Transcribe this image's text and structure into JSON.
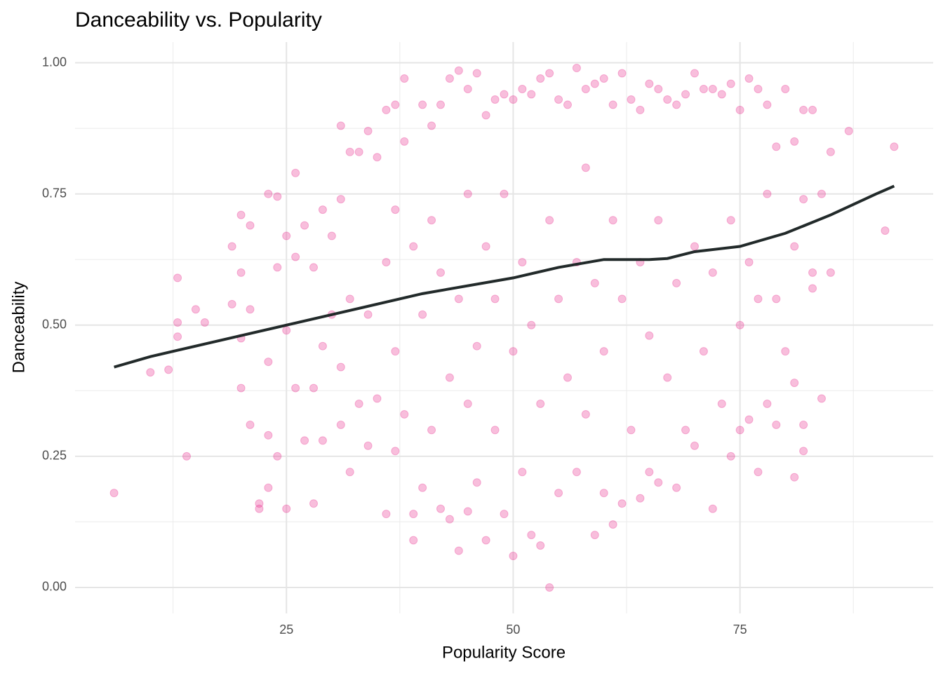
{
  "chart_data": {
    "type": "scatter",
    "title": "Danceability vs. Popularity",
    "x_label": "Popularity Score",
    "y_label": "Danceability",
    "xlim": [
      1.7,
      96.3
    ],
    "ylim": [
      -0.0495,
      1.0395
    ],
    "xticks": [
      25,
      50,
      75
    ],
    "yticks": [
      {
        "value": 0,
        "label": "0.00"
      },
      {
        "value": 0.25,
        "label": "0.25"
      },
      {
        "value": 0.5,
        "label": "0.50"
      },
      {
        "value": 0.75,
        "label": "0.75"
      },
      {
        "value": 1,
        "label": "1.00"
      }
    ],
    "x_minor_grid": [
      12.5,
      37.5,
      62.5,
      87.5
    ],
    "y_minor_grid": [
      0.125,
      0.375,
      0.625,
      0.875
    ],
    "grid": true,
    "points": {
      "color": "#e7298a",
      "opacity": 0.3,
      "x": [
        6,
        10,
        12,
        13,
        13,
        13,
        14,
        15,
        16,
        19,
        19,
        20,
        20,
        20,
        20,
        21,
        21,
        21,
        22,
        22,
        23,
        23,
        23,
        23,
        24,
        24,
        24,
        25,
        25,
        25,
        26,
        26,
        26,
        27,
        27,
        28,
        28,
        28,
        29,
        29,
        29,
        30,
        30,
        31,
        31,
        31,
        31,
        32,
        32,
        32,
        33,
        33,
        34,
        34,
        34,
        35,
        35,
        36,
        36,
        36,
        37,
        37,
        37,
        37,
        38,
        38,
        38,
        39,
        39,
        39,
        40,
        40,
        40,
        41,
        41,
        41,
        42,
        42,
        42,
        43,
        43,
        43,
        44,
        44,
        44,
        45,
        45,
        45,
        45,
        46,
        46,
        46,
        47,
        47,
        47,
        48,
        48,
        48,
        49,
        49,
        49,
        50,
        50,
        50,
        51,
        51,
        51,
        52,
        52,
        52,
        53,
        53,
        53,
        54,
        54,
        54,
        55,
        55,
        55,
        56,
        56,
        57,
        57,
        57,
        58,
        58,
        58,
        59,
        59,
        59,
        60,
        60,
        60,
        61,
        61,
        61,
        62,
        62,
        62,
        63,
        63,
        64,
        64,
        64,
        65,
        65,
        65,
        66,
        66,
        66,
        67,
        67,
        68,
        68,
        68,
        69,
        69,
        70,
        70,
        70,
        71,
        71,
        72,
        72,
        72,
        73,
        73,
        74,
        74,
        74,
        75,
        75,
        75,
        76,
        76,
        76,
        77,
        77,
        77,
        78,
        78,
        78,
        79,
        79,
        79,
        80,
        80,
        81,
        81,
        81,
        81,
        82,
        82,
        82,
        82,
        83,
        83,
        83,
        84,
        84,
        85,
        85,
        87,
        91,
        92
      ],
      "y": [
        0.18,
        0.41,
        0.415,
        0.59,
        0.505,
        0.478,
        0.25,
        0.53,
        0.505,
        0.65,
        0.54,
        0.71,
        0.6,
        0.38,
        0.475,
        0.69,
        0.53,
        0.31,
        0.16,
        0.15,
        0.75,
        0.43,
        0.29,
        0.19,
        0.745,
        0.61,
        0.25,
        0.67,
        0.49,
        0.15,
        0.79,
        0.63,
        0.38,
        0.69,
        0.28,
        0.61,
        0.16,
        0.38,
        0.72,
        0.46,
        0.28,
        0.67,
        0.52,
        0.88,
        0.31,
        0.74,
        0.42,
        0.83,
        0.55,
        0.22,
        0.83,
        0.35,
        0.87,
        0.52,
        0.27,
        0.82,
        0.36,
        0.91,
        0.62,
        0.14,
        0.92,
        0.72,
        0.45,
        0.26,
        0.97,
        0.85,
        0.33,
        0.14,
        0.09,
        0.65,
        0.92,
        0.52,
        0.19,
        0.88,
        0.7,
        0.3,
        0.92,
        0.6,
        0.15,
        0.97,
        0.4,
        0.13,
        0.985,
        0.07,
        0.55,
        0.95,
        0.75,
        0.35,
        0.145,
        0.98,
        0.46,
        0.2,
        0.9,
        0.65,
        0.09,
        0.93,
        0.3,
        0.55,
        0.94,
        0.14,
        0.75,
        0.93,
        0.06,
        0.45,
        0.95,
        0.62,
        0.22,
        0.94,
        0.1,
        0.5,
        0.97,
        0.08,
        0.35,
        0.98,
        0,
        0.7,
        0.93,
        0.55,
        0.18,
        0.92,
        0.4,
        0.99,
        0.62,
        0.22,
        0.95,
        0.8,
        0.33,
        0.96,
        0.1,
        0.58,
        0.97,
        0.45,
        0.18,
        0.92,
        0.12,
        0.7,
        0.98,
        0.55,
        0.16,
        0.93,
        0.3,
        0.91,
        0.62,
        0.17,
        0.96,
        0.48,
        0.22,
        0.95,
        0.7,
        0.2,
        0.93,
        0.4,
        0.92,
        0.58,
        0.19,
        0.94,
        0.3,
        0.98,
        0.65,
        0.27,
        0.95,
        0.45,
        0.95,
        0.15,
        0.6,
        0.94,
        0.35,
        0.96,
        0.7,
        0.25,
        0.91,
        0.5,
        0.3,
        0.97,
        0.62,
        0.32,
        0.95,
        0.22,
        0.55,
        0.92,
        0.75,
        0.35,
        0.84,
        0.31,
        0.55,
        0.95,
        0.45,
        0.85,
        0.21,
        0.39,
        0.65,
        0.91,
        0.31,
        0.26,
        0.74,
        0.91,
        0.6,
        0.57,
        0.75,
        0.36,
        0.83,
        0.6,
        0.87,
        0.68,
        0.84
      ]
    },
    "smooth": {
      "color": "#222a2a",
      "x": [
        6,
        10,
        20,
        30,
        40,
        50,
        55,
        60,
        65,
        67,
        70,
        75,
        80,
        85,
        90,
        92
      ],
      "y": [
        0.42,
        0.44,
        0.48,
        0.52,
        0.56,
        0.59,
        0.61,
        0.625,
        0.625,
        0.627,
        0.64,
        0.65,
        0.675,
        0.71,
        0.75,
        0.765
      ]
    }
  }
}
